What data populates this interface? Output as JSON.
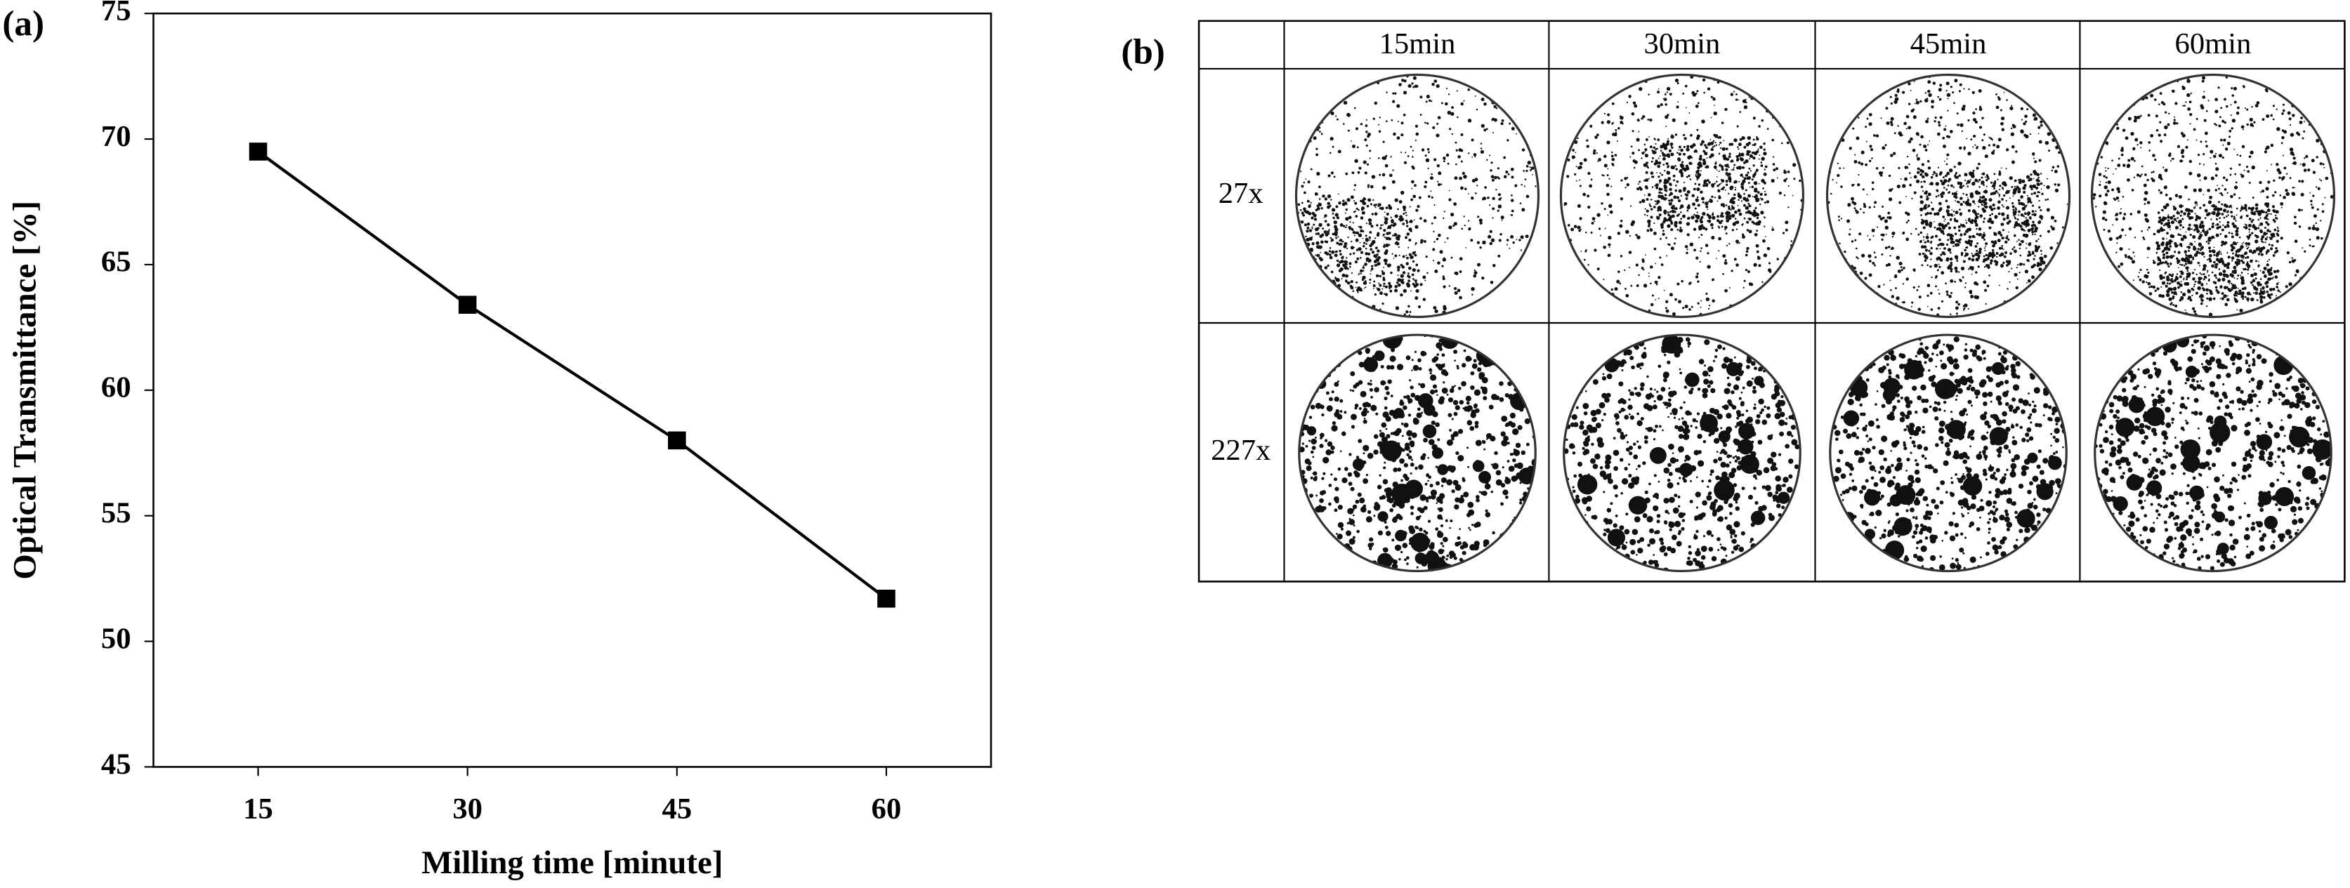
{
  "chart_data": {
    "type": "line",
    "panel_label": "(a)",
    "x_label": "Milling time [minute]",
    "y_label": "Optical Transmittance [%]",
    "x": [
      15,
      30,
      45,
      60
    ],
    "series": [
      {
        "color": "#000000",
        "values": [
          69.5,
          63.4,
          58.0,
          51.7
        ]
      }
    ],
    "xlim": [
      7.5,
      67.5
    ],
    "xticks": [
      15,
      30,
      45,
      60
    ],
    "ylim": [
      45,
      75
    ],
    "yticks": [
      45,
      50,
      55,
      60,
      65,
      70,
      75
    ],
    "grid": false
  },
  "figure_b": {
    "label": "(b)",
    "columns": [
      "15min",
      "30min",
      "45min",
      "60min"
    ],
    "rows": [
      "27x",
      "227x"
    ]
  }
}
